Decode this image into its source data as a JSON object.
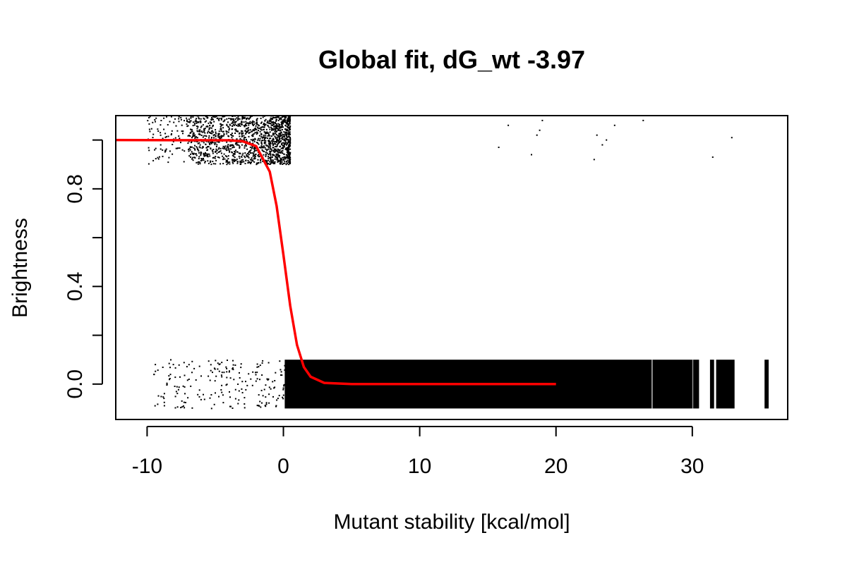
{
  "chart_data": {
    "type": "scatter",
    "title": "Global fit, dG_wt -3.97",
    "xlabel": "Mutant stability [kcal/mol]",
    "ylabel": "Brightness",
    "xlim": [
      -12.3,
      37
    ],
    "ylim": [
      -0.145,
      1.1
    ],
    "x_ticks": [
      -10,
      0,
      10,
      20,
      30
    ],
    "x_tick_labels": [
      "-10",
      "0",
      "10",
      "20",
      "30"
    ],
    "y_ticks": [
      0.0,
      0.2,
      0.4,
      0.6,
      0.8,
      1.0
    ],
    "y_tick_labels": [
      "0.0",
      "",
      "0.4",
      "",
      "0.8",
      ""
    ],
    "grid": false,
    "colors": {
      "points": "#000000",
      "fit_line": "#ff0000",
      "axes": "#000000"
    },
    "series": [
      {
        "type": "scatter",
        "clusters": [
          {
            "x_range": [
              -10,
              0.5
            ],
            "y_range": [
              0.9,
              1.1
            ],
            "density": "high near x=-2 to 0.5, sparse below x=-7"
          },
          {
            "x_range": [
              15.7,
              33
            ],
            "y_range": [
              0.9,
              1.1
            ],
            "density": "very sparse"
          },
          {
            "x_range": [
              -9.5,
              0.1
            ],
            "y_range": [
              -0.1,
              0.1
            ],
            "density": "sparse"
          },
          {
            "x_range": [
              0.1,
              30.5
            ],
            "y_range": [
              -0.1,
              0.1
            ],
            "density": "saturated solid band"
          },
          {
            "x_range": [
              31.3,
              33.1
            ],
            "y_range": [
              -0.1,
              0.1
            ],
            "density": "vertical strips"
          },
          {
            "x_range": [
              35.3,
              35.6
            ],
            "y_range": [
              -0.1,
              0.1
            ],
            "density": "single strip"
          }
        ]
      },
      {
        "type": "line",
        "model": "logistic fit",
        "points": [
          {
            "x": -12.3,
            "y": 1.0
          },
          {
            "x": -4,
            "y": 0.999
          },
          {
            "x": -3,
            "y": 0.995
          },
          {
            "x": -2,
            "y": 0.975
          },
          {
            "x": -1,
            "y": 0.87
          },
          {
            "x": -0.5,
            "y": 0.73
          },
          {
            "x": 0,
            "y": 0.53
          },
          {
            "x": 0.5,
            "y": 0.32
          },
          {
            "x": 1,
            "y": 0.16
          },
          {
            "x": 1.5,
            "y": 0.07
          },
          {
            "x": 2,
            "y": 0.03
          },
          {
            "x": 3,
            "y": 0.005
          },
          {
            "x": 5,
            "y": 0.0
          },
          {
            "x": 20,
            "y": 0.0
          }
        ]
      }
    ]
  }
}
